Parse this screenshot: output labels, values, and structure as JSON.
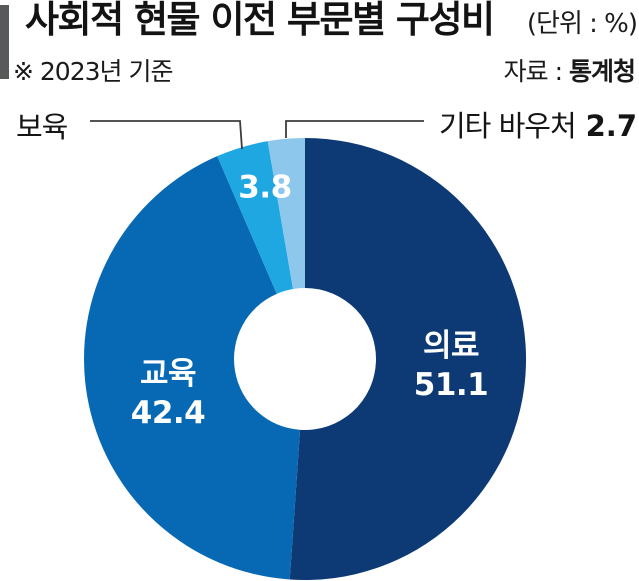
{
  "header": {
    "title": "사회적 현물 이전 부문별 구성비",
    "unit": "(단위 : %)",
    "note": "※ 2023년 기준",
    "source_prefix": "자료 : ",
    "source_value": "통계청"
  },
  "chart_data": {
    "type": "pie",
    "subtype": "donut",
    "title": "사회적 현물 이전 부문별 구성비",
    "unit": "%",
    "basis": "2023년 기준",
    "source": "통계청",
    "direction": "clockwise",
    "start_angle_deg": 0,
    "legend_position": "none",
    "inner_radius_ratio": 0.32,
    "inside_label_color": "#ffffff",
    "outside_label_color": "#151515",
    "leader_line_color": "#3d3d3d",
    "segments": [
      {
        "id": "medical",
        "label": "의료",
        "value": 51.1,
        "display": "51.1",
        "color": "#0d3a75",
        "label_placement": "inside"
      },
      {
        "id": "education",
        "label": "교육",
        "value": 42.4,
        "display": "42.4",
        "color": "#0769b4",
        "label_placement": "inside"
      },
      {
        "id": "childcare",
        "label": "보육",
        "value": 3.8,
        "display": "3.8",
        "color": "#1fa7e1",
        "label_placement": "callout"
      },
      {
        "id": "other-voucher",
        "label": "기타 바우처",
        "value": 2.7,
        "display": "2.7",
        "color": "#8dc8ec",
        "label_placement": "callout"
      }
    ]
  }
}
